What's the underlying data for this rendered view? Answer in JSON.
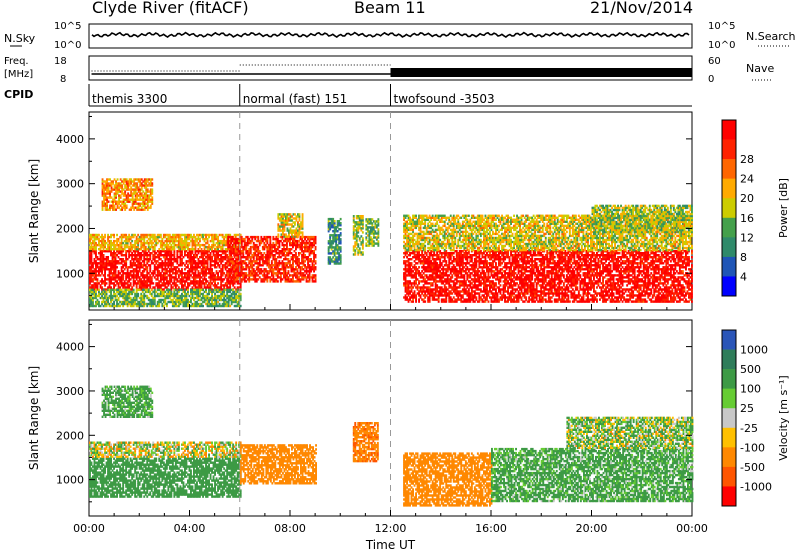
{
  "header": {
    "station": "Clyde River (fitACF)",
    "beam": "Beam 11",
    "date": "21/Nov/2014"
  },
  "noise_panel": {
    "left_label": "N.Sky",
    "right_label": "N.Search",
    "left_ticks": [
      "10^5",
      "10^0"
    ],
    "right_ticks": [
      "10^5",
      "10^0"
    ],
    "level": 0.55
  },
  "freq_panel": {
    "left_label_top": "Freq.",
    "left_label_bottom": "[MHz]",
    "right_label": "Nave",
    "left_ticks": [
      "18",
      "8"
    ],
    "right_ticks": [
      "60",
      "0"
    ]
  },
  "cpid": {
    "label": "CPID",
    "segments": [
      {
        "name": "themis 3300",
        "start": 0,
        "end": 6
      },
      {
        "name": "normal (fast) 151",
        "start": 6,
        "end": 12
      },
      {
        "name": "twofsound -3503",
        "start": 12,
        "end": 24
      }
    ]
  },
  "chart_data": [
    {
      "type": "heatmap",
      "panel": "power",
      "ylabel": "Slant Range [km]",
      "ylim": [
        180,
        4600
      ],
      "yticks": [
        1000,
        2000,
        3000,
        4000
      ],
      "colorbar_label": "Power [dB]",
      "colorbar_ticks": [
        "4",
        "8",
        "12",
        "16",
        "20",
        "24",
        "28"
      ],
      "colors": [
        "#0000ff",
        "#1f55b6",
        "#2f8a6a",
        "#44a04b",
        "#cccc00",
        "#ffaa00",
        "#ff6600",
        "#ff2200",
        "#ff0000"
      ],
      "bands": [
        {
          "t0": 0.0,
          "t1": 6.0,
          "r0": 620,
          "r1": 1520,
          "value": 28
        },
        {
          "t0": 0.0,
          "t1": 6.0,
          "r0": 1520,
          "r1": 1850,
          "value": 18
        },
        {
          "t0": 0.0,
          "t1": 6.0,
          "r0": 250,
          "r1": 620,
          "value": 12
        },
        {
          "t0": 0.5,
          "t1": 2.5,
          "r0": 2400,
          "r1": 3100,
          "value": 20
        },
        {
          "t0": 5.5,
          "t1": 9.0,
          "r0": 800,
          "r1": 1800,
          "value": 26
        },
        {
          "t0": 7.5,
          "t1": 8.5,
          "r0": 1800,
          "r1": 2300,
          "value": 16
        },
        {
          "t0": 9.5,
          "t1": 10.0,
          "r0": 1200,
          "r1": 2200,
          "value": 9
        },
        {
          "t0": 10.5,
          "t1": 10.9,
          "r0": 1400,
          "r1": 2300,
          "value": 14
        },
        {
          "t0": 11.0,
          "t1": 11.5,
          "r0": 1600,
          "r1": 2200,
          "value": 12
        },
        {
          "t0": 12.5,
          "t1": 24.0,
          "r0": 350,
          "r1": 1500,
          "value": 28
        },
        {
          "t0": 12.5,
          "t1": 24.0,
          "r0": 1500,
          "r1": 2300,
          "value": 16
        },
        {
          "t0": 20.0,
          "t1": 24.0,
          "r0": 1900,
          "r1": 2500,
          "value": 14
        }
      ]
    },
    {
      "type": "heatmap",
      "panel": "velocity",
      "ylabel": "Slant Range [km]",
      "ylim": [
        180,
        4600
      ],
      "yticks": [
        1000,
        2000,
        3000,
        4000
      ],
      "colorbar_label": "Velocity [m s⁻¹]",
      "colorbar_ticks": [
        "1000",
        "500",
        "100",
        "25",
        "-25",
        "-100",
        "-500",
        "-1000"
      ],
      "colors": [
        "#2a55b8",
        "#2f7d5a",
        "#3d9a45",
        "#66cc33",
        "#c8c8c8",
        "#ffc000",
        "#ff8800",
        "#ff5500",
        "#ff0000"
      ],
      "bands": [
        {
          "t0": 0.0,
          "t1": 6.0,
          "r0": 600,
          "r1": 1500,
          "value": 300
        },
        {
          "t0": 0.0,
          "t1": 6.0,
          "r0": 1500,
          "r1": 1850,
          "value": 0
        },
        {
          "t0": 0.5,
          "t1": 2.5,
          "r0": 2400,
          "r1": 3100,
          "value": 200
        },
        {
          "t0": 6.0,
          "t1": 9.0,
          "r0": 900,
          "r1": 1800,
          "value": -300
        },
        {
          "t0": 10.5,
          "t1": 11.5,
          "r0": 1400,
          "r1": 2300,
          "value": -400
        },
        {
          "t0": 12.5,
          "t1": 16.0,
          "r0": 400,
          "r1": 1600,
          "value": -300
        },
        {
          "t0": 16.0,
          "t1": 24.0,
          "r0": 500,
          "r1": 1700,
          "value": 200
        },
        {
          "t0": 19.0,
          "t1": 24.0,
          "r0": 1700,
          "r1": 2400,
          "value": 80
        }
      ]
    }
  ],
  "x_axis": {
    "label": "Time UT",
    "ticks": [
      "00:00",
      "04:00",
      "08:00",
      "12:00",
      "16:00",
      "20:00",
      "00:00"
    ]
  }
}
